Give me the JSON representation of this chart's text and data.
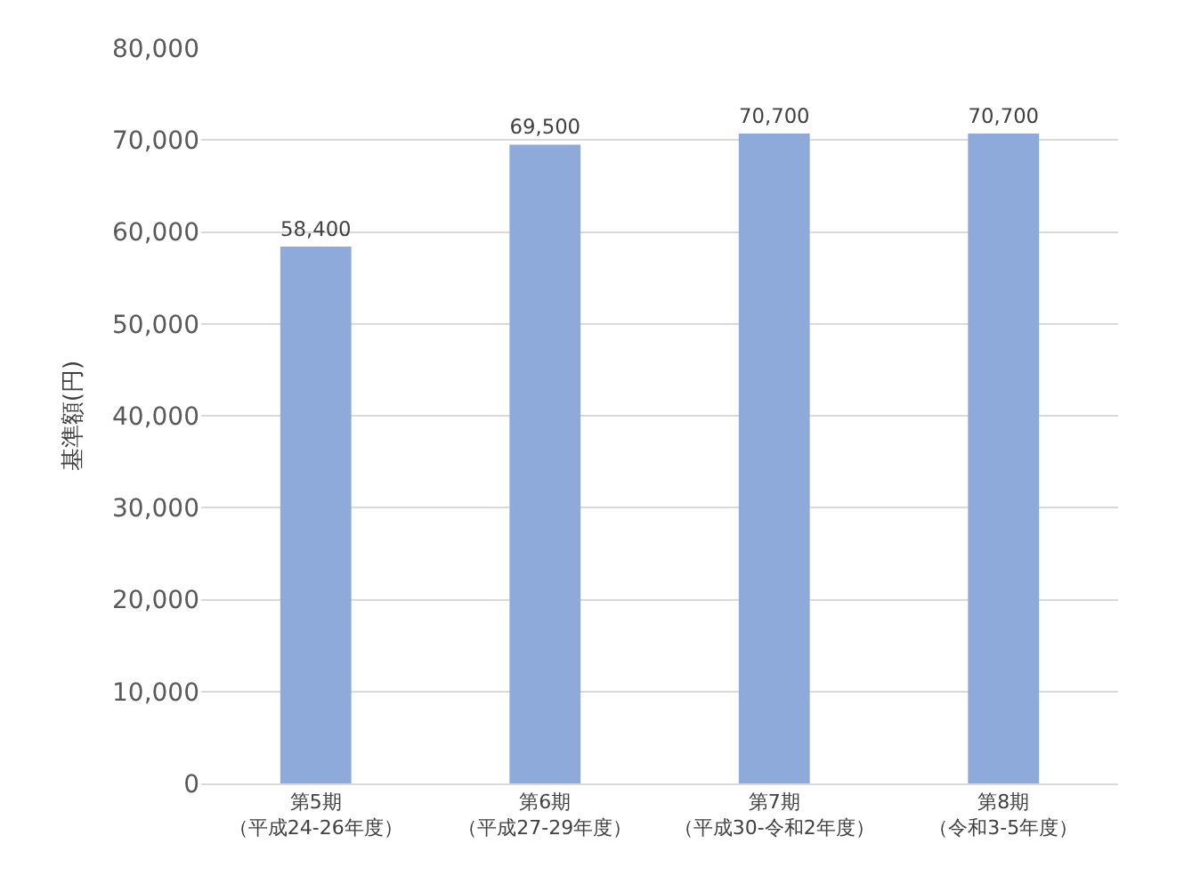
{
  "chart_data": {
    "type": "bar",
    "ylabel": "基準額(円)",
    "categories": [
      "第5期（平成24-26年度）",
      "第6期（平成27-29年度）",
      "第7期（平成30-令和2年度）",
      "第8期（令和3-5年度）"
    ],
    "values": [
      58400,
      69500,
      70700,
      70700
    ],
    "color": "#8eaadb",
    "value_labels": [
      "58,400",
      "69,500",
      "70,700",
      "70,700"
    ],
    "ylim": [
      0,
      80000
    ],
    "yticks": [
      0,
      {
        "value": 10000,
        "label": "10,000"
      },
      {
        "value": 20000,
        "label": "20,000"
      },
      {
        "value": 30000,
        "label": "30,000"
      },
      {
        "value": 40000,
        "label": "40,000"
      },
      {
        "value": 50000,
        "label": "50,000"
      },
      {
        "value": 60000,
        "label": "60,000"
      },
      {
        "value": 70000,
        "label": "70,000"
      },
      {
        "value": 80000,
        "label": "80,000"
      }
    ],
    "grid": "y"
  }
}
